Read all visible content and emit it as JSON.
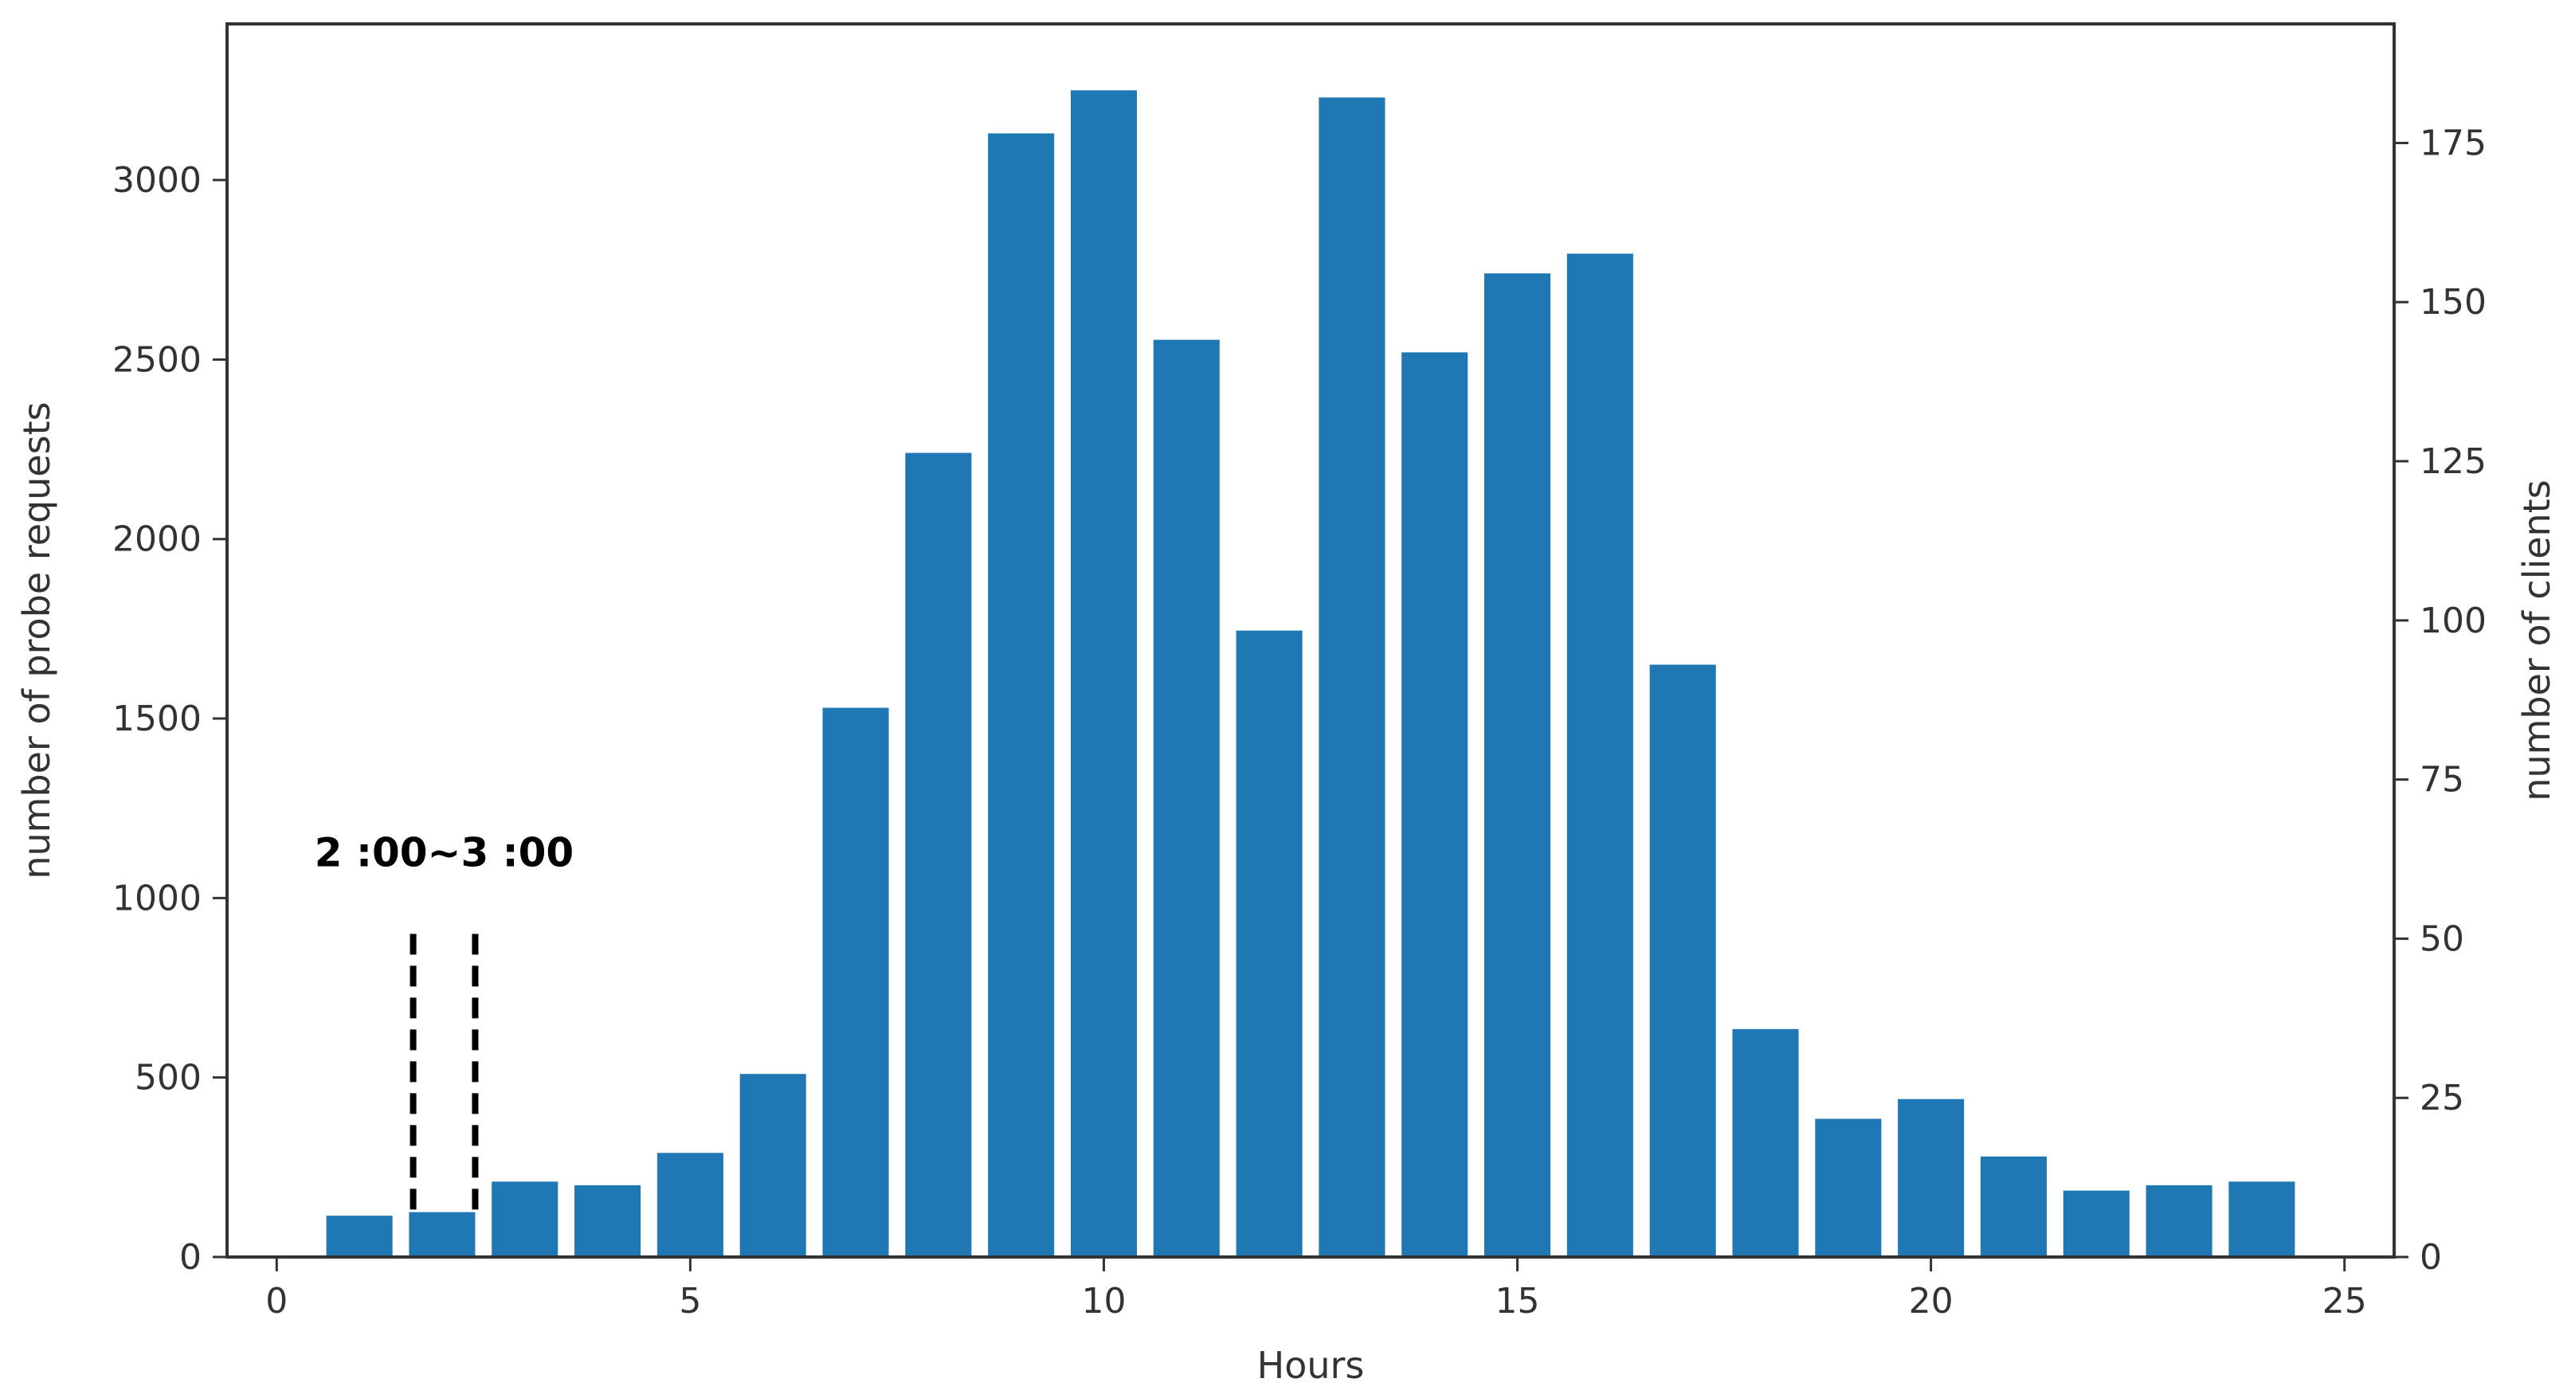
{
  "chart_data": {
    "type": "bar",
    "x": [
      1,
      2,
      3,
      4,
      5,
      6,
      7,
      8,
      9,
      10,
      11,
      12,
      13,
      14,
      15,
      16,
      17,
      18,
      19,
      20,
      21,
      22,
      23,
      24
    ],
    "values": [
      115,
      125,
      210,
      200,
      290,
      510,
      1530,
      2240,
      3130,
      3250,
      2555,
      1745,
      3230,
      2520,
      2740,
      2795,
      1650,
      635,
      385,
      440,
      280,
      185,
      200,
      210
    ],
    "bar_color": "#1f77b4",
    "xlabel": "Hours",
    "ylabel": "number of probe requests",
    "y2label": "number of clients",
    "xlim": [
      -0.6,
      25.6
    ],
    "ylim": [
      0,
      3435
    ],
    "y2lim": [
      0,
      193.7
    ],
    "xticks": [
      0,
      5,
      10,
      15,
      20,
      25
    ],
    "yticks": [
      0,
      500,
      1000,
      1500,
      2000,
      2500,
      3000
    ],
    "y2ticks": [
      0,
      25,
      50,
      75,
      100,
      125,
      150,
      175
    ],
    "annotation": {
      "text": "2 :00~3 :00",
      "lines_x": [
        1.65,
        2.4
      ],
      "line_y_range": [
        130,
        900
      ]
    }
  }
}
